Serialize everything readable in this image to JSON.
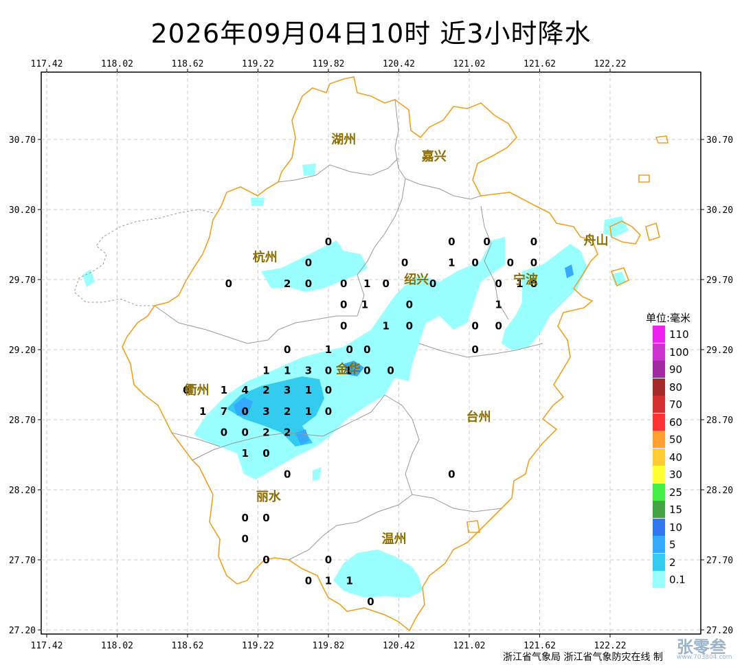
{
  "title": "2026年09月04日10时  近3小时降水",
  "x_ticks": [
    "117.42",
    "118.02",
    "118.62",
    "119.22",
    "119.82",
    "120.42",
    "121.02",
    "121.62",
    "122.22"
  ],
  "y_ticks": [
    "30.70",
    "30.20",
    "29.70",
    "29.20",
    "28.70",
    "28.20",
    "27.70",
    "27.20"
  ],
  "cities": [
    {
      "name": "湖州",
      "lon": 119.95,
      "lat": 30.7
    },
    {
      "name": "嘉兴",
      "lon": 120.72,
      "lat": 30.58
    },
    {
      "name": "杭州",
      "lon": 119.28,
      "lat": 29.86
    },
    {
      "name": "绍兴",
      "lon": 120.57,
      "lat": 29.7
    },
    {
      "name": "宁波",
      "lon": 121.5,
      "lat": 29.7
    },
    {
      "name": "舟山",
      "lon": 122.1,
      "lat": 29.98
    },
    {
      "name": "衢州",
      "lon": 118.7,
      "lat": 28.91
    },
    {
      "name": "金华",
      "lon": 119.99,
      "lat": 29.06
    },
    {
      "name": "台州",
      "lon": 121.1,
      "lat": 28.72
    },
    {
      "name": "丽水",
      "lon": 119.31,
      "lat": 28.15
    },
    {
      "name": "温州",
      "lon": 120.38,
      "lat": 27.85
    }
  ],
  "values": [
    {
      "v": "0",
      "lon": 119.82,
      "lat": 29.97
    },
    {
      "v": "0",
      "lon": 120.87,
      "lat": 29.97
    },
    {
      "v": "0",
      "lon": 121.17,
      "lat": 29.97
    },
    {
      "v": "0",
      "lon": 121.57,
      "lat": 29.97
    },
    {
      "v": "0",
      "lon": 119.65,
      "lat": 29.82
    },
    {
      "v": "0",
      "lon": 120.47,
      "lat": 29.82
    },
    {
      "v": "1",
      "lon": 120.87,
      "lat": 29.82
    },
    {
      "v": "0",
      "lon": 121.07,
      "lat": 29.82
    },
    {
      "v": "0",
      "lon": 121.37,
      "lat": 29.82
    },
    {
      "v": "0",
      "lon": 121.57,
      "lat": 29.82
    },
    {
      "v": "0",
      "lon": 118.97,
      "lat": 29.67
    },
    {
      "v": "2",
      "lon": 119.47,
      "lat": 29.67
    },
    {
      "v": "0",
      "lon": 119.65,
      "lat": 29.67
    },
    {
      "v": "0",
      "lon": 119.95,
      "lat": 29.67
    },
    {
      "v": "1",
      "lon": 120.15,
      "lat": 29.67
    },
    {
      "v": "0",
      "lon": 120.31,
      "lat": 29.67
    },
    {
      "v": "0",
      "lon": 120.71,
      "lat": 29.67
    },
    {
      "v": "0",
      "lon": 121.27,
      "lat": 29.67
    },
    {
      "v": "1",
      "lon": 121.45,
      "lat": 29.67
    },
    {
      "v": "0",
      "lon": 121.57,
      "lat": 29.67
    },
    {
      "v": "0",
      "lon": 119.95,
      "lat": 29.52
    },
    {
      "v": "1",
      "lon": 120.13,
      "lat": 29.52
    },
    {
      "v": "0",
      "lon": 120.51,
      "lat": 29.52
    },
    {
      "v": "1",
      "lon": 121.27,
      "lat": 29.52
    },
    {
      "v": "0",
      "lon": 119.95,
      "lat": 29.37
    },
    {
      "v": "1",
      "lon": 120.31,
      "lat": 29.37
    },
    {
      "v": "0",
      "lon": 120.51,
      "lat": 29.37
    },
    {
      "v": "0",
      "lon": 121.07,
      "lat": 29.37
    },
    {
      "v": "0",
      "lon": 121.27,
      "lat": 29.37
    },
    {
      "v": "0",
      "lon": 119.47,
      "lat": 29.2
    },
    {
      "v": "1",
      "lon": 119.82,
      "lat": 29.2
    },
    {
      "v": "0",
      "lon": 120.0,
      "lat": 29.2
    },
    {
      "v": "0",
      "lon": 120.15,
      "lat": 29.2
    },
    {
      "v": "0",
      "lon": 121.07,
      "lat": 29.2
    },
    {
      "v": "1",
      "lon": 119.29,
      "lat": 29.05
    },
    {
      "v": "1",
      "lon": 119.47,
      "lat": 29.05
    },
    {
      "v": "3",
      "lon": 119.65,
      "lat": 29.05
    },
    {
      "v": "0",
      "lon": 119.82,
      "lat": 29.05
    },
    {
      "v": "1",
      "lon": 119.99,
      "lat": 29.05
    },
    {
      "v": "0",
      "lon": 120.15,
      "lat": 29.05
    },
    {
      "v": "0",
      "lon": 120.35,
      "lat": 29.05
    },
    {
      "v": "0",
      "lon": 118.61,
      "lat": 28.91
    },
    {
      "v": "1",
      "lon": 118.93,
      "lat": 28.91
    },
    {
      "v": "4",
      "lon": 119.11,
      "lat": 28.91
    },
    {
      "v": "2",
      "lon": 119.29,
      "lat": 28.91
    },
    {
      "v": "3",
      "lon": 119.47,
      "lat": 28.91
    },
    {
      "v": "1",
      "lon": 119.65,
      "lat": 28.91
    },
    {
      "v": "0",
      "lon": 119.82,
      "lat": 28.91
    },
    {
      "v": "1",
      "lon": 118.75,
      "lat": 28.76
    },
    {
      "v": "7",
      "lon": 118.93,
      "lat": 28.76
    },
    {
      "v": "0",
      "lon": 119.11,
      "lat": 28.76
    },
    {
      "v": "3",
      "lon": 119.29,
      "lat": 28.76
    },
    {
      "v": "2",
      "lon": 119.47,
      "lat": 28.76
    },
    {
      "v": "1",
      "lon": 119.65,
      "lat": 28.76
    },
    {
      "v": "0",
      "lon": 119.82,
      "lat": 28.76
    },
    {
      "v": "0",
      "lon": 118.93,
      "lat": 28.61
    },
    {
      "v": "0",
      "lon": 119.11,
      "lat": 28.61
    },
    {
      "v": "2",
      "lon": 119.29,
      "lat": 28.61
    },
    {
      "v": "2",
      "lon": 119.47,
      "lat": 28.61
    },
    {
      "v": "1",
      "lon": 119.11,
      "lat": 28.46
    },
    {
      "v": "0",
      "lon": 119.29,
      "lat": 28.46
    },
    {
      "v": "0",
      "lon": 119.47,
      "lat": 28.31
    },
    {
      "v": "0",
      "lon": 120.87,
      "lat": 28.31
    },
    {
      "v": "0",
      "lon": 119.11,
      "lat": 28.0
    },
    {
      "v": "0",
      "lon": 119.29,
      "lat": 28.0
    },
    {
      "v": "0",
      "lon": 119.11,
      "lat": 27.85
    },
    {
      "v": "0",
      "lon": 119.29,
      "lat": 27.7
    },
    {
      "v": "0",
      "lon": 119.82,
      "lat": 27.7
    },
    {
      "v": "0",
      "lon": 119.65,
      "lat": 27.55
    },
    {
      "v": "1",
      "lon": 119.82,
      "lat": 27.55
    },
    {
      "v": "1",
      "lon": 120.0,
      "lat": 27.55
    },
    {
      "v": "0",
      "lon": 120.18,
      "lat": 27.4
    }
  ],
  "legend": {
    "title": "单位:毫米",
    "items": [
      {
        "label": "110",
        "color": "#ee22ee"
      },
      {
        "label": "100",
        "color": "#cc33cc"
      },
      {
        "label": "90",
        "color": "#a02aa0"
      },
      {
        "label": "80",
        "color": "#a52a2a"
      },
      {
        "label": "70",
        "color": "#d43030"
      },
      {
        "label": "60",
        "color": "#ff3333"
      },
      {
        "label": "50",
        "color": "#ffa030"
      },
      {
        "label": "40",
        "color": "#ffcc33"
      },
      {
        "label": "30",
        "color": "#ffff33"
      },
      {
        "label": "25",
        "color": "#44ee44"
      },
      {
        "label": "15",
        "color": "#44a444"
      },
      {
        "label": "10",
        "color": "#3377ee"
      },
      {
        "label": "5",
        "color": "#33aaff"
      },
      {
        "label": "2",
        "color": "#33ccee"
      },
      {
        "label": "0.1",
        "color": "#99ffff"
      }
    ]
  },
  "footer": "浙江省气象局  浙江省气象防灾在线  制",
  "watermark": {
    "text": "张零叁",
    "sub": "www.703804.com"
  }
}
